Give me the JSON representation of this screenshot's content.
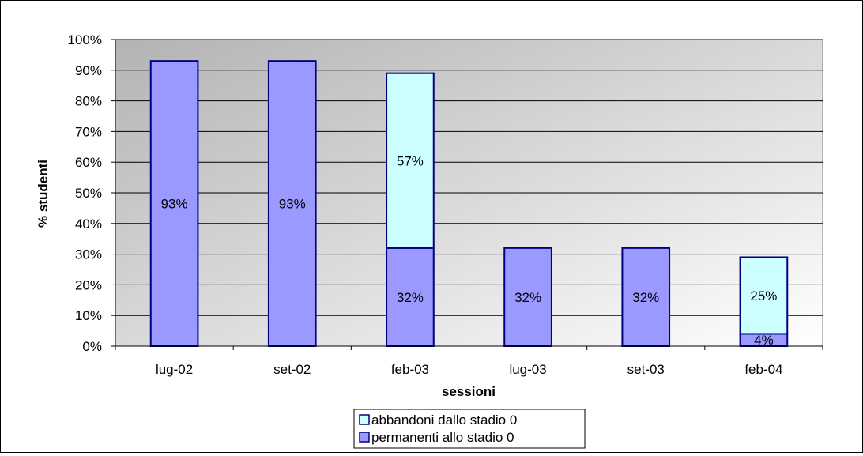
{
  "chart_data": {
    "type": "bar",
    "stacked": true,
    "categories": [
      "lug-02",
      "set-02",
      "feb-03",
      "lug-03",
      "set-03",
      "feb-04"
    ],
    "series": [
      {
        "name": "permanenti allo stadio 0",
        "values": [
          93,
          93,
          32,
          32,
          32,
          4
        ],
        "labels": [
          "93%",
          "93%",
          "32%",
          "32%",
          "32%",
          "4%"
        ],
        "color": "#9999ff"
      },
      {
        "name": "abbandoni dallo  stadio 0",
        "values": [
          0,
          0,
          57,
          0,
          0,
          25
        ],
        "labels": [
          "",
          "",
          "57%",
          "",
          "",
          "25%"
        ],
        "color": "#ccffff"
      }
    ],
    "xlabel": "sessioni",
    "ylabel": "% studenti",
    "ylim": [
      0,
      100
    ],
    "yticks": [
      "0%",
      "10%",
      "20%",
      "30%",
      "40%",
      "50%",
      "60%",
      "70%",
      "80%",
      "90%",
      "100%"
    ],
    "grid": true,
    "legend_position": "bottom",
    "legend_order": [
      1,
      0
    ],
    "plot_background": "gradient-gray-to-white",
    "bar_border_color": "#000080"
  }
}
